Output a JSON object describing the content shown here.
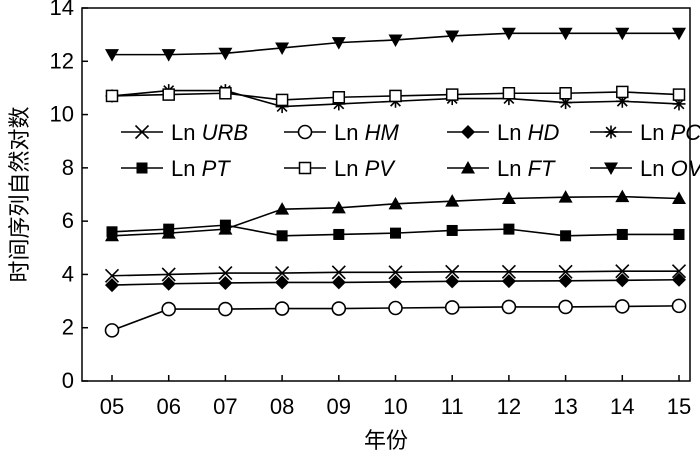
{
  "chart_data": {
    "type": "line",
    "xlabel": "年份",
    "ylabel": "时间序列自然对数",
    "categories": [
      "05",
      "06",
      "07",
      "08",
      "09",
      "10",
      "11",
      "12",
      "13",
      "14",
      "15"
    ],
    "ylim": [
      0,
      14
    ],
    "yticks": [
      "0",
      "2",
      "4",
      "6",
      "8",
      "10",
      "12",
      "14"
    ],
    "grid": false,
    "legend_position": "top-center",
    "series": [
      {
        "name_prefix": "Ln",
        "name": "URB",
        "marker": "x",
        "values": [
          3.95,
          4.0,
          4.05,
          4.05,
          4.08,
          4.08,
          4.1,
          4.1,
          4.1,
          4.12,
          4.12
        ]
      },
      {
        "name_prefix": "Ln",
        "name": "HM",
        "marker": "open-circle",
        "values": [
          1.9,
          2.7,
          2.7,
          2.72,
          2.72,
          2.74,
          2.76,
          2.78,
          2.78,
          2.8,
          2.82
        ]
      },
      {
        "name_prefix": "Ln",
        "name": "HD",
        "marker": "diamond",
        "values": [
          3.6,
          3.65,
          3.68,
          3.7,
          3.7,
          3.72,
          3.74,
          3.75,
          3.76,
          3.78,
          3.8
        ]
      },
      {
        "name_prefix": "Ln",
        "name": "PC",
        "marker": "asterisk",
        "values": [
          10.7,
          10.9,
          10.9,
          10.3,
          10.4,
          10.5,
          10.6,
          10.6,
          10.45,
          10.5,
          10.4
        ]
      },
      {
        "name_prefix": "Ln",
        "name": "PT",
        "marker": "filled-square",
        "values": [
          5.6,
          5.7,
          5.85,
          5.45,
          5.5,
          5.55,
          5.65,
          5.7,
          5.45,
          5.5,
          5.5
        ]
      },
      {
        "name_prefix": "Ln",
        "name": "PV",
        "marker": "open-square",
        "values": [
          10.7,
          10.75,
          10.8,
          10.55,
          10.65,
          10.7,
          10.75,
          10.8,
          10.8,
          10.85,
          10.75
        ]
      },
      {
        "name_prefix": "Ln",
        "name": "FT",
        "marker": "triangle-up",
        "values": [
          5.45,
          5.55,
          5.7,
          6.45,
          6.5,
          6.65,
          6.75,
          6.85,
          6.9,
          6.92,
          6.85
        ]
      },
      {
        "name_prefix": "Ln",
        "name": "OVO",
        "marker": "triangle-down",
        "values": [
          12.25,
          12.25,
          12.3,
          12.5,
          12.7,
          12.8,
          12.95,
          13.05,
          13.05,
          13.05,
          13.05
        ]
      }
    ]
  }
}
